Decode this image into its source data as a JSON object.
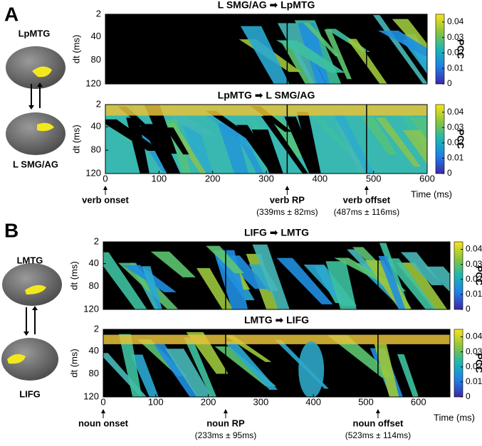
{
  "panels": [
    {
      "label": "A",
      "regions": [
        "LpMTG",
        "L SMG/AG"
      ]
    },
    {
      "label": "B",
      "regions": [
        "LMTG",
        "LIFG"
      ]
    }
  ],
  "chart_data": [
    {
      "type": "heatmap",
      "title": "L SMG/AG ➡ LpMTG",
      "ylabel": "dt (ms)",
      "xlim": [
        0,
        600
      ],
      "ylim": [
        2,
        120
      ],
      "yticks": [
        2,
        40,
        80,
        120
      ],
      "clim": [
        0,
        0.045
      ],
      "cticks": [
        0,
        0.01,
        0.02,
        0.03,
        0.04
      ],
      "clabel": "PCC",
      "vlines": [
        339,
        487
      ]
    },
    {
      "type": "heatmap",
      "title": "LpMTG ➡ L SMG/AG",
      "ylabel": "dt (ms)",
      "xlabel": "Time (ms)",
      "xlim": [
        0,
        600
      ],
      "xticks": [
        0,
        100,
        200,
        300,
        400,
        500,
        600
      ],
      "ylim": [
        2,
        120
      ],
      "yticks": [
        2,
        40,
        80,
        120
      ],
      "clim": [
        0,
        0.045
      ],
      "cticks": [
        0,
        0.01,
        0.02,
        0.03,
        0.04
      ],
      "clabel": "PCC",
      "vlines": [
        339,
        487
      ],
      "annotations": [
        {
          "x": 0,
          "text": "verb onset"
        },
        {
          "x": 339,
          "text": "verb RP",
          "subtext": "(339ms ± 82ms)"
        },
        {
          "x": 487,
          "text": "verb offset",
          "subtext": "(487ms ± 116ms)"
        }
      ]
    },
    {
      "type": "heatmap",
      "title": "LIFG ➡ LMTG",
      "ylabel": "dt (ms)",
      "xlim": [
        0,
        660
      ],
      "ylim": [
        2,
        120
      ],
      "yticks": [
        2,
        40,
        80,
        120
      ],
      "clim": [
        0,
        0.045
      ],
      "cticks": [
        0,
        0.01,
        0.02,
        0.03,
        0.04
      ],
      "clabel": "PCC",
      "vlines": [
        233,
        523
      ]
    },
    {
      "type": "heatmap",
      "title": "LMTG ➡ LIFG",
      "ylabel": "dt (ms)",
      "xlabel": "Time (ms)",
      "xlim": [
        0,
        660
      ],
      "xticks": [
        0,
        100,
        200,
        300,
        400,
        500,
        600
      ],
      "ylim": [
        2,
        120
      ],
      "yticks": [
        2,
        40,
        80,
        120
      ],
      "clim": [
        0,
        0.045
      ],
      "cticks": [
        0,
        0.01,
        0.02,
        0.03,
        0.04
      ],
      "clabel": "PCC",
      "vlines": [
        233,
        523
      ],
      "annotations": [
        {
          "x": 0,
          "text": "noun onset"
        },
        {
          "x": 233,
          "text": "noun RP",
          "subtext": "(233ms ± 95ms)"
        },
        {
          "x": 523,
          "text": "noun offset",
          "subtext": "(523ms ± 114ms)"
        }
      ]
    }
  ]
}
